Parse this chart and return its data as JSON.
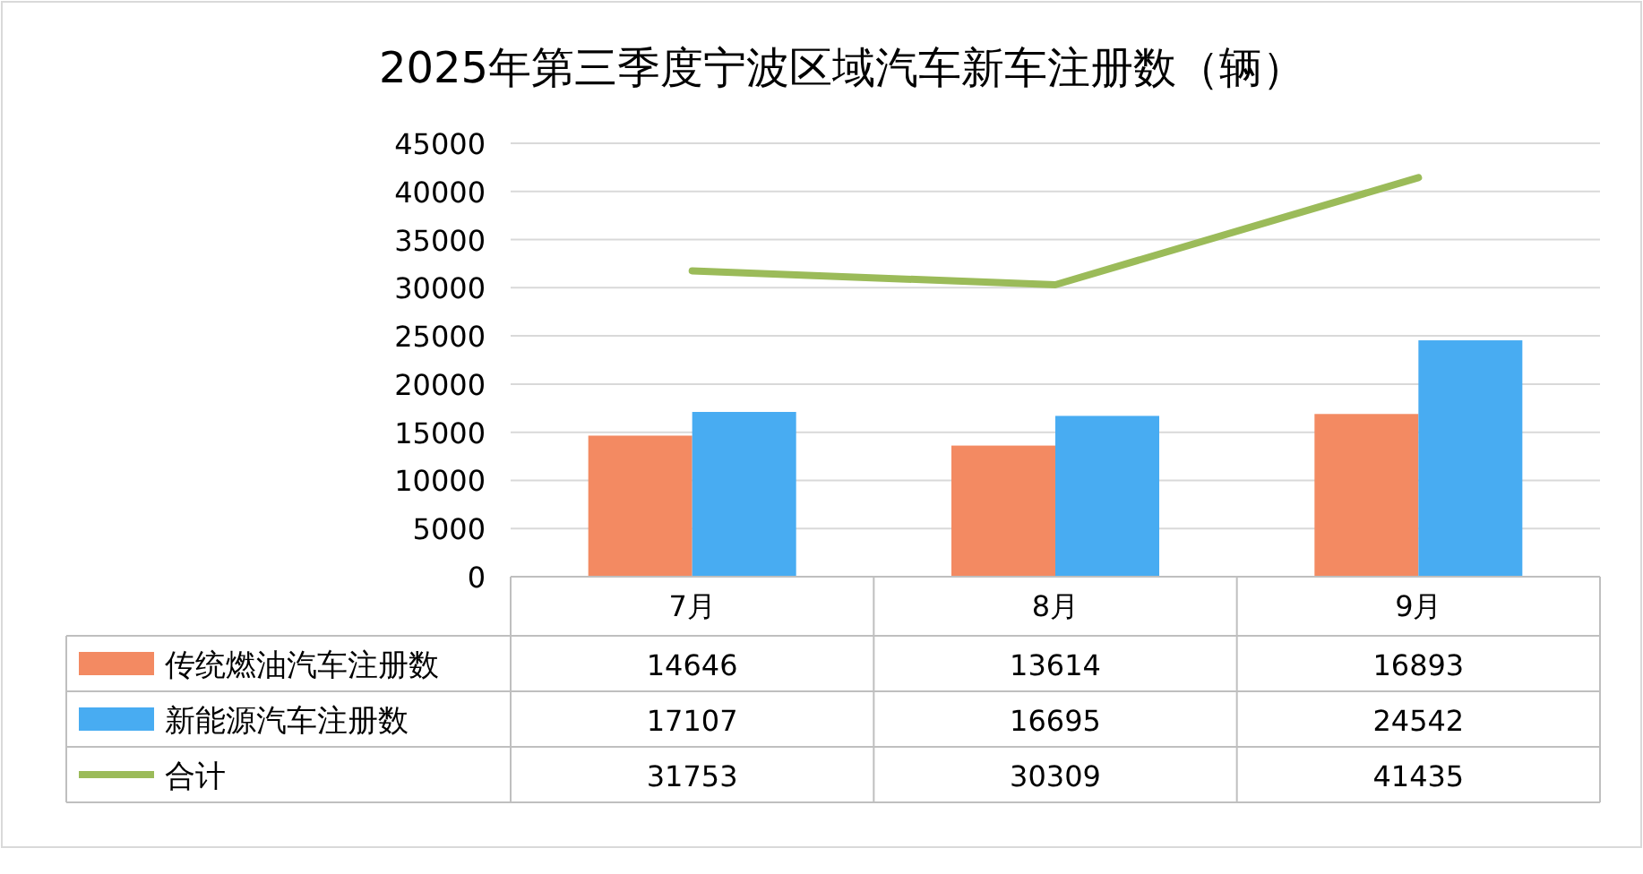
{
  "chart_data": {
    "type": "bar",
    "title": "2025年第三季度宁波区域汽车新车注册数（辆）",
    "categories": [
      "7月",
      "8月",
      "9月"
    ],
    "series": [
      {
        "name": "传统燃油汽车注册数",
        "color": "#f38a62",
        "values": [
          14646,
          13614,
          16893
        ]
      },
      {
        "name": "新能源汽车注册数",
        "color": "#48acf2",
        "values": [
          17107,
          16695,
          24542
        ]
      },
      {
        "name": "合计",
        "type": "line",
        "color": "#9bbb59",
        "values": [
          31753,
          30309,
          41435
        ]
      }
    ],
    "ylim": [
      0,
      45000
    ],
    "yticks": [
      0,
      5000,
      10000,
      15000,
      20000,
      25000,
      30000,
      35000,
      40000,
      45000
    ],
    "grid": "y",
    "legend": "bottom",
    "data_labels": true,
    "line_style": "solid"
  }
}
